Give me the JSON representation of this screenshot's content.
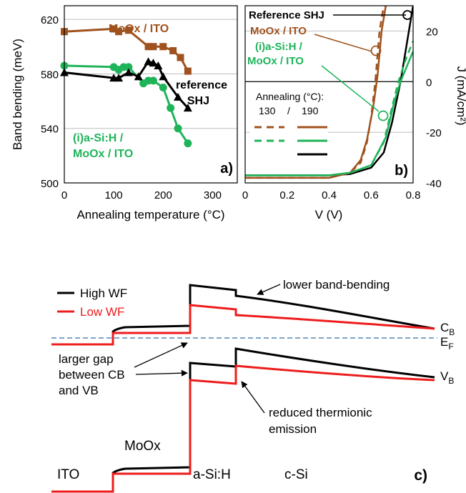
{
  "colors": {
    "brown": "#A0521E",
    "green": "#1FB45A",
    "black": "#000000",
    "red": "#EE1C1C",
    "fermi": "#2E6DA4",
    "grid": "#BFBFBF"
  },
  "chart_data": [
    {
      "type": "line",
      "panel_label": "a)",
      "xlabel": "Annealing temperature (°C)",
      "ylabel": "Band bending (meV)",
      "xlim": [
        0,
        350
      ],
      "ylim": [
        500,
        630
      ],
      "x_ticks": [
        "0",
        "100",
        "200",
        "300"
      ],
      "x_tick_values": [
        0,
        100,
        200,
        300
      ],
      "y_ticks": [
        "500",
        "540",
        "580",
        "620"
      ],
      "y_tick_values": [
        500,
        540,
        580,
        620
      ],
      "grid": "horizontal",
      "series": [
        {
          "name": "MoOx / ITO",
          "color": "#A0521E",
          "marker": "square",
          "x": [
            0,
            100,
            110,
            130,
            170,
            180,
            200,
            220,
            235,
            250
          ],
          "y": [
            611,
            613,
            611,
            612,
            600,
            600,
            600,
            597,
            592,
            582
          ]
        },
        {
          "name": "(i)a-Si:H / MoOx / ITO",
          "color": "#1FB45A",
          "marker": "circle",
          "x": [
            0,
            100,
            110,
            120,
            130,
            160,
            170,
            180,
            200,
            215,
            230,
            250
          ],
          "y": [
            586,
            585,
            583,
            585,
            585,
            573,
            575,
            575,
            570,
            555,
            540,
            529
          ]
        },
        {
          "name": "reference SHJ",
          "color": "#000000",
          "marker": "triangle",
          "x": [
            0,
            100,
            110,
            130,
            150,
            170,
            180,
            190,
            200,
            230,
            250
          ],
          "y": [
            581,
            577,
            577,
            581,
            578,
            589,
            588,
            586,
            578,
            563,
            555
          ]
        }
      ]
    },
    {
      "type": "line",
      "panel_label": "b)",
      "xlabel": "V (V)",
      "ylabel": "J (mA/cm²)",
      "xlim": [
        0,
        0.8
      ],
      "ylim": [
        -40,
        30
      ],
      "x_ticks": [
        "0",
        "0.2",
        "0.4",
        "0.6",
        "0.8"
      ],
      "x_tick_values": [
        0,
        0.2,
        0.4,
        0.6,
        0.8
      ],
      "y_ticks": [
        "-40",
        "-20",
        "0",
        "20"
      ],
      "y_tick_values": [
        -40,
        -20,
        0,
        20
      ],
      "grid": "horizontal",
      "legend_title": "Annealing (°C):",
      "legend_columns": [
        "130",
        "/",
        "190"
      ],
      "series": [
        {
          "name": "Reference SHJ",
          "color": "#000000",
          "dash": false,
          "x": [
            0,
            0.4,
            0.5,
            0.6,
            0.66,
            0.7,
            0.74,
            0.78,
            0.8
          ],
          "y": [
            -37,
            -37,
            -36.5,
            -34,
            -28,
            -16,
            0,
            20,
            30
          ]
        },
        {
          "name": "MoOx / ITO",
          "color": "#A0521E",
          "dash": true,
          "x": [
            0,
            0.4,
            0.5,
            0.55,
            0.58,
            0.6,
            0.62,
            0.64,
            0.66
          ],
          "y": [
            -38,
            -38,
            -36,
            -32,
            -24,
            -14,
            0,
            20,
            30
          ]
        },
        {
          "name": "MoOx / ITO",
          "color": "#A0521E",
          "dash": false,
          "x": [
            0,
            0.4,
            0.5,
            0.55,
            0.58,
            0.61,
            0.63,
            0.65,
            0.67
          ],
          "y": [
            -38,
            -38,
            -36,
            -31,
            -23,
            -10,
            2,
            20,
            30
          ]
        },
        {
          "name": "(i)a-Si:H / MoOx / ITO",
          "color": "#1FB45A",
          "dash": true,
          "x": [
            0,
            0.4,
            0.5,
            0.6,
            0.66,
            0.7,
            0.73,
            0.77,
            0.8
          ],
          "y": [
            -37,
            -37,
            -36,
            -33,
            -24,
            -10,
            0,
            10,
            16
          ]
        },
        {
          "name": "(i)a-Si:H / MoOx / ITO",
          "color": "#1FB45A",
          "dash": false,
          "x": [
            0,
            0.4,
            0.5,
            0.6,
            0.67,
            0.71,
            0.74,
            0.78,
            0.8
          ],
          "y": [
            -37,
            -37,
            -36,
            -33,
            -22,
            -8,
            0,
            8,
            12
          ]
        }
      ]
    }
  ],
  "panel_a": {
    "label": "a)",
    "xlabel": "Annealing temperature (°C)",
    "ylabel": "Band bending (meV)",
    "annot_moox": "MoOx / ITO",
    "annot_ref_1": "reference",
    "annot_ref_2": "SHJ",
    "annot_asi_1": "(i)a-Si:H /",
    "annot_asi_2": "MoOx / ITO"
  },
  "panel_b": {
    "label": "b)",
    "xlabel": "V (V)",
    "ylabel": "J (mA/cm²)",
    "annot_ref": "Reference SHJ",
    "annot_moox": "MoOx / ITO",
    "annot_asi_1": "(i)a-Si:H /",
    "annot_asi_2": "MoOx / ITO",
    "legend_title": "Annealing (°C):",
    "legend_t1": "130",
    "legend_sep": "/",
    "legend_t2": "190"
  },
  "panel_c": {
    "label": "c)",
    "legend_high": "High WF",
    "legend_low": "Low WF",
    "annot_band_bending": "lower band-bending",
    "annot_gap_1": "larger gap",
    "annot_gap_2": "between CB",
    "annot_gap_3": "and VB",
    "annot_thermionic_1": "reduced thermionic",
    "annot_thermionic_2": "emission",
    "label_cb": "C",
    "label_cb_sub": "B",
    "label_ef": "E",
    "label_ef_sub": "F",
    "label_vb": "V",
    "label_vb_sub": "B",
    "layer_ito": "ITO",
    "layer_moox": "MoOx",
    "layer_asi": "a-Si:H",
    "layer_csi": "c-Si"
  }
}
